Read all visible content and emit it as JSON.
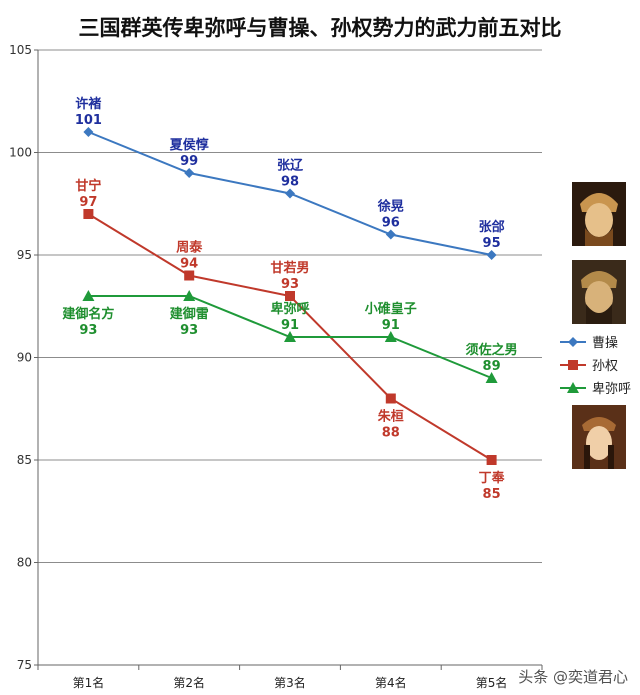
{
  "chart_data": {
    "type": "line",
    "title": "三国群英传卑弥呼与曹操、孙权势力的武力前五对比",
    "categories": [
      "第1名",
      "第2名",
      "第3名",
      "第4名",
      "第5名"
    ],
    "ylim": [
      75,
      105
    ],
    "yticks": [
      75,
      80,
      85,
      90,
      95,
      100,
      105
    ],
    "grid": true,
    "legend_position": "right",
    "series": [
      {
        "name": "曹操",
        "color": "#3c78c0",
        "label_color": "#1f2f9e",
        "marker": "diamond",
        "values": [
          101,
          99,
          98,
          96,
          95
        ],
        "labels": [
          "许褚",
          "夏侯惇",
          "张辽",
          "徐晃",
          "张郃"
        ]
      },
      {
        "name": "孙权",
        "color": "#c0392b",
        "label_color": "#c0392b",
        "marker": "square",
        "values": [
          97,
          94,
          93,
          88,
          85
        ],
        "labels": [
          "甘宁",
          "周泰",
          "甘若男",
          "朱桓",
          "丁奉"
        ]
      },
      {
        "name": "卑弥呼",
        "color": "#1f9a3a",
        "label_color": "#1f8f2f",
        "marker": "triangle",
        "values": [
          93,
          93,
          91,
          91,
          89
        ],
        "labels": [
          "建御名方",
          "建御雷",
          "卑弥呼",
          "小碓皇子",
          "须佐之男"
        ]
      }
    ]
  },
  "watermark": "头条 @奕道君心",
  "portraits": [
    {
      "name": "portrait-cao-cao",
      "colors": [
        "#7a4a1e",
        "#c9954f",
        "#e6c08a"
      ]
    },
    {
      "name": "portrait-sun-quan",
      "colors": [
        "#3a2a1a",
        "#a8763d",
        "#d8b27a"
      ]
    },
    {
      "name": "portrait-himiko",
      "colors": [
        "#5a3018",
        "#d7a370",
        "#f0cfa8"
      ]
    }
  ]
}
